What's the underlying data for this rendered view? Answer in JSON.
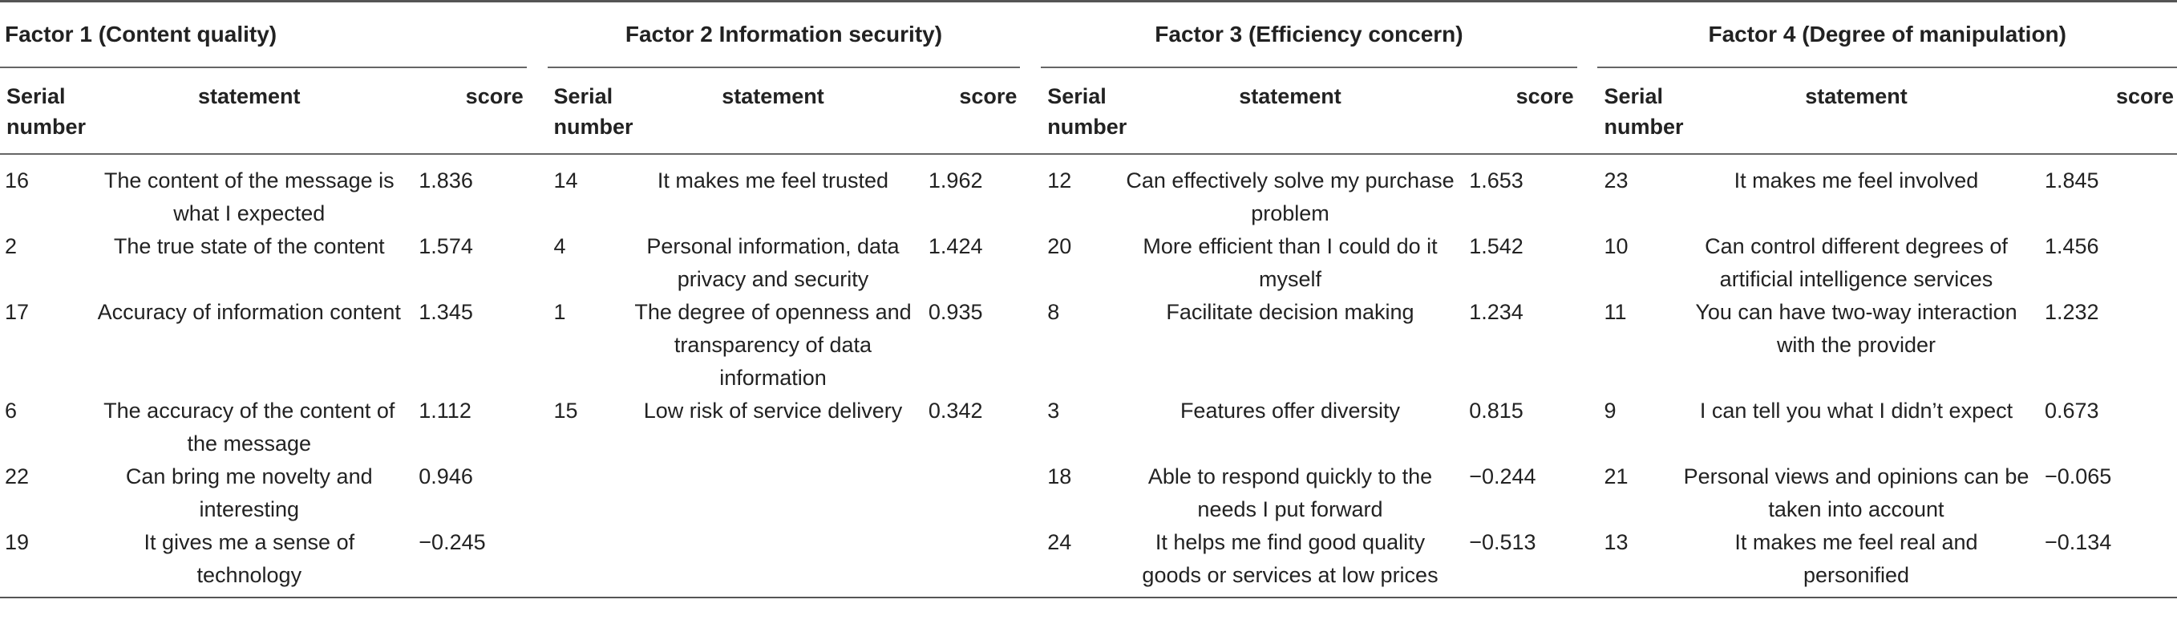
{
  "headers": {
    "serial": "Serial number",
    "statement": "statement",
    "score": "score"
  },
  "factors": [
    {
      "title": "Factor 1 (Content quality)",
      "rows": [
        {
          "serial": "16",
          "statement": "The content of the message is what I expected",
          "score": "1.836"
        },
        {
          "serial": "2",
          "statement": "The true state of the content",
          "score": "1.574"
        },
        {
          "serial": "17",
          "statement": "Accuracy of information content",
          "score": "1.345"
        },
        {
          "serial": "6",
          "statement": "The accuracy of the content of the message",
          "score": "1.112"
        },
        {
          "serial": "22",
          "statement": "Can bring me novelty and interesting",
          "score": "0.946"
        },
        {
          "serial": "19",
          "statement": "It gives me a sense of technology",
          "score": "−0.245"
        }
      ]
    },
    {
      "title": "Factor 2 Information security)",
      "rows": [
        {
          "serial": "14",
          "statement": "It makes me feel trusted",
          "score": "1.962"
        },
        {
          "serial": "4",
          "statement": "Personal information, data privacy and security",
          "score": "1.424"
        },
        {
          "serial": "1",
          "statement": "The degree of openness and transparency of data information",
          "score": "0.935"
        },
        {
          "serial": "15",
          "statement": "Low risk of service delivery",
          "score": "0.342"
        },
        {
          "serial": "",
          "statement": "",
          "score": ""
        },
        {
          "serial": "",
          "statement": "",
          "score": ""
        }
      ]
    },
    {
      "title": "Factor 3 (Efficiency concern)",
      "rows": [
        {
          "serial": "12",
          "statement": "Can effectively solve my purchase problem",
          "score": "1.653"
        },
        {
          "serial": "20",
          "statement": "More efficient than I could do it myself",
          "score": "1.542"
        },
        {
          "serial": "8",
          "statement": "Facilitate decision making",
          "score": "1.234"
        },
        {
          "serial": "3",
          "statement": "Features offer diversity",
          "score": "0.815"
        },
        {
          "serial": "18",
          "statement": "Able to respond quickly to the needs I put forward",
          "score": "−0.244"
        },
        {
          "serial": "24",
          "statement": "It helps me find good quality goods or services at low prices",
          "score": "−0.513"
        }
      ]
    },
    {
      "title": "Factor 4 (Degree of manipulation)",
      "rows": [
        {
          "serial": "23",
          "statement": "It makes me feel involved",
          "score": "1.845"
        },
        {
          "serial": "10",
          "statement": "Can control different degrees of artificial intelligence services",
          "score": "1.456"
        },
        {
          "serial": "11",
          "statement": "You can have two-way interaction with the provider",
          "score": "1.232"
        },
        {
          "serial": "9",
          "statement": "I can tell you what I didn’t expect",
          "score": "0.673"
        },
        {
          "serial": "21",
          "statement": "Personal views and opinions can be taken into account",
          "score": "−0.065"
        },
        {
          "serial": "13",
          "statement": "It makes me feel real and personified",
          "score": "−0.134"
        }
      ]
    }
  ]
}
